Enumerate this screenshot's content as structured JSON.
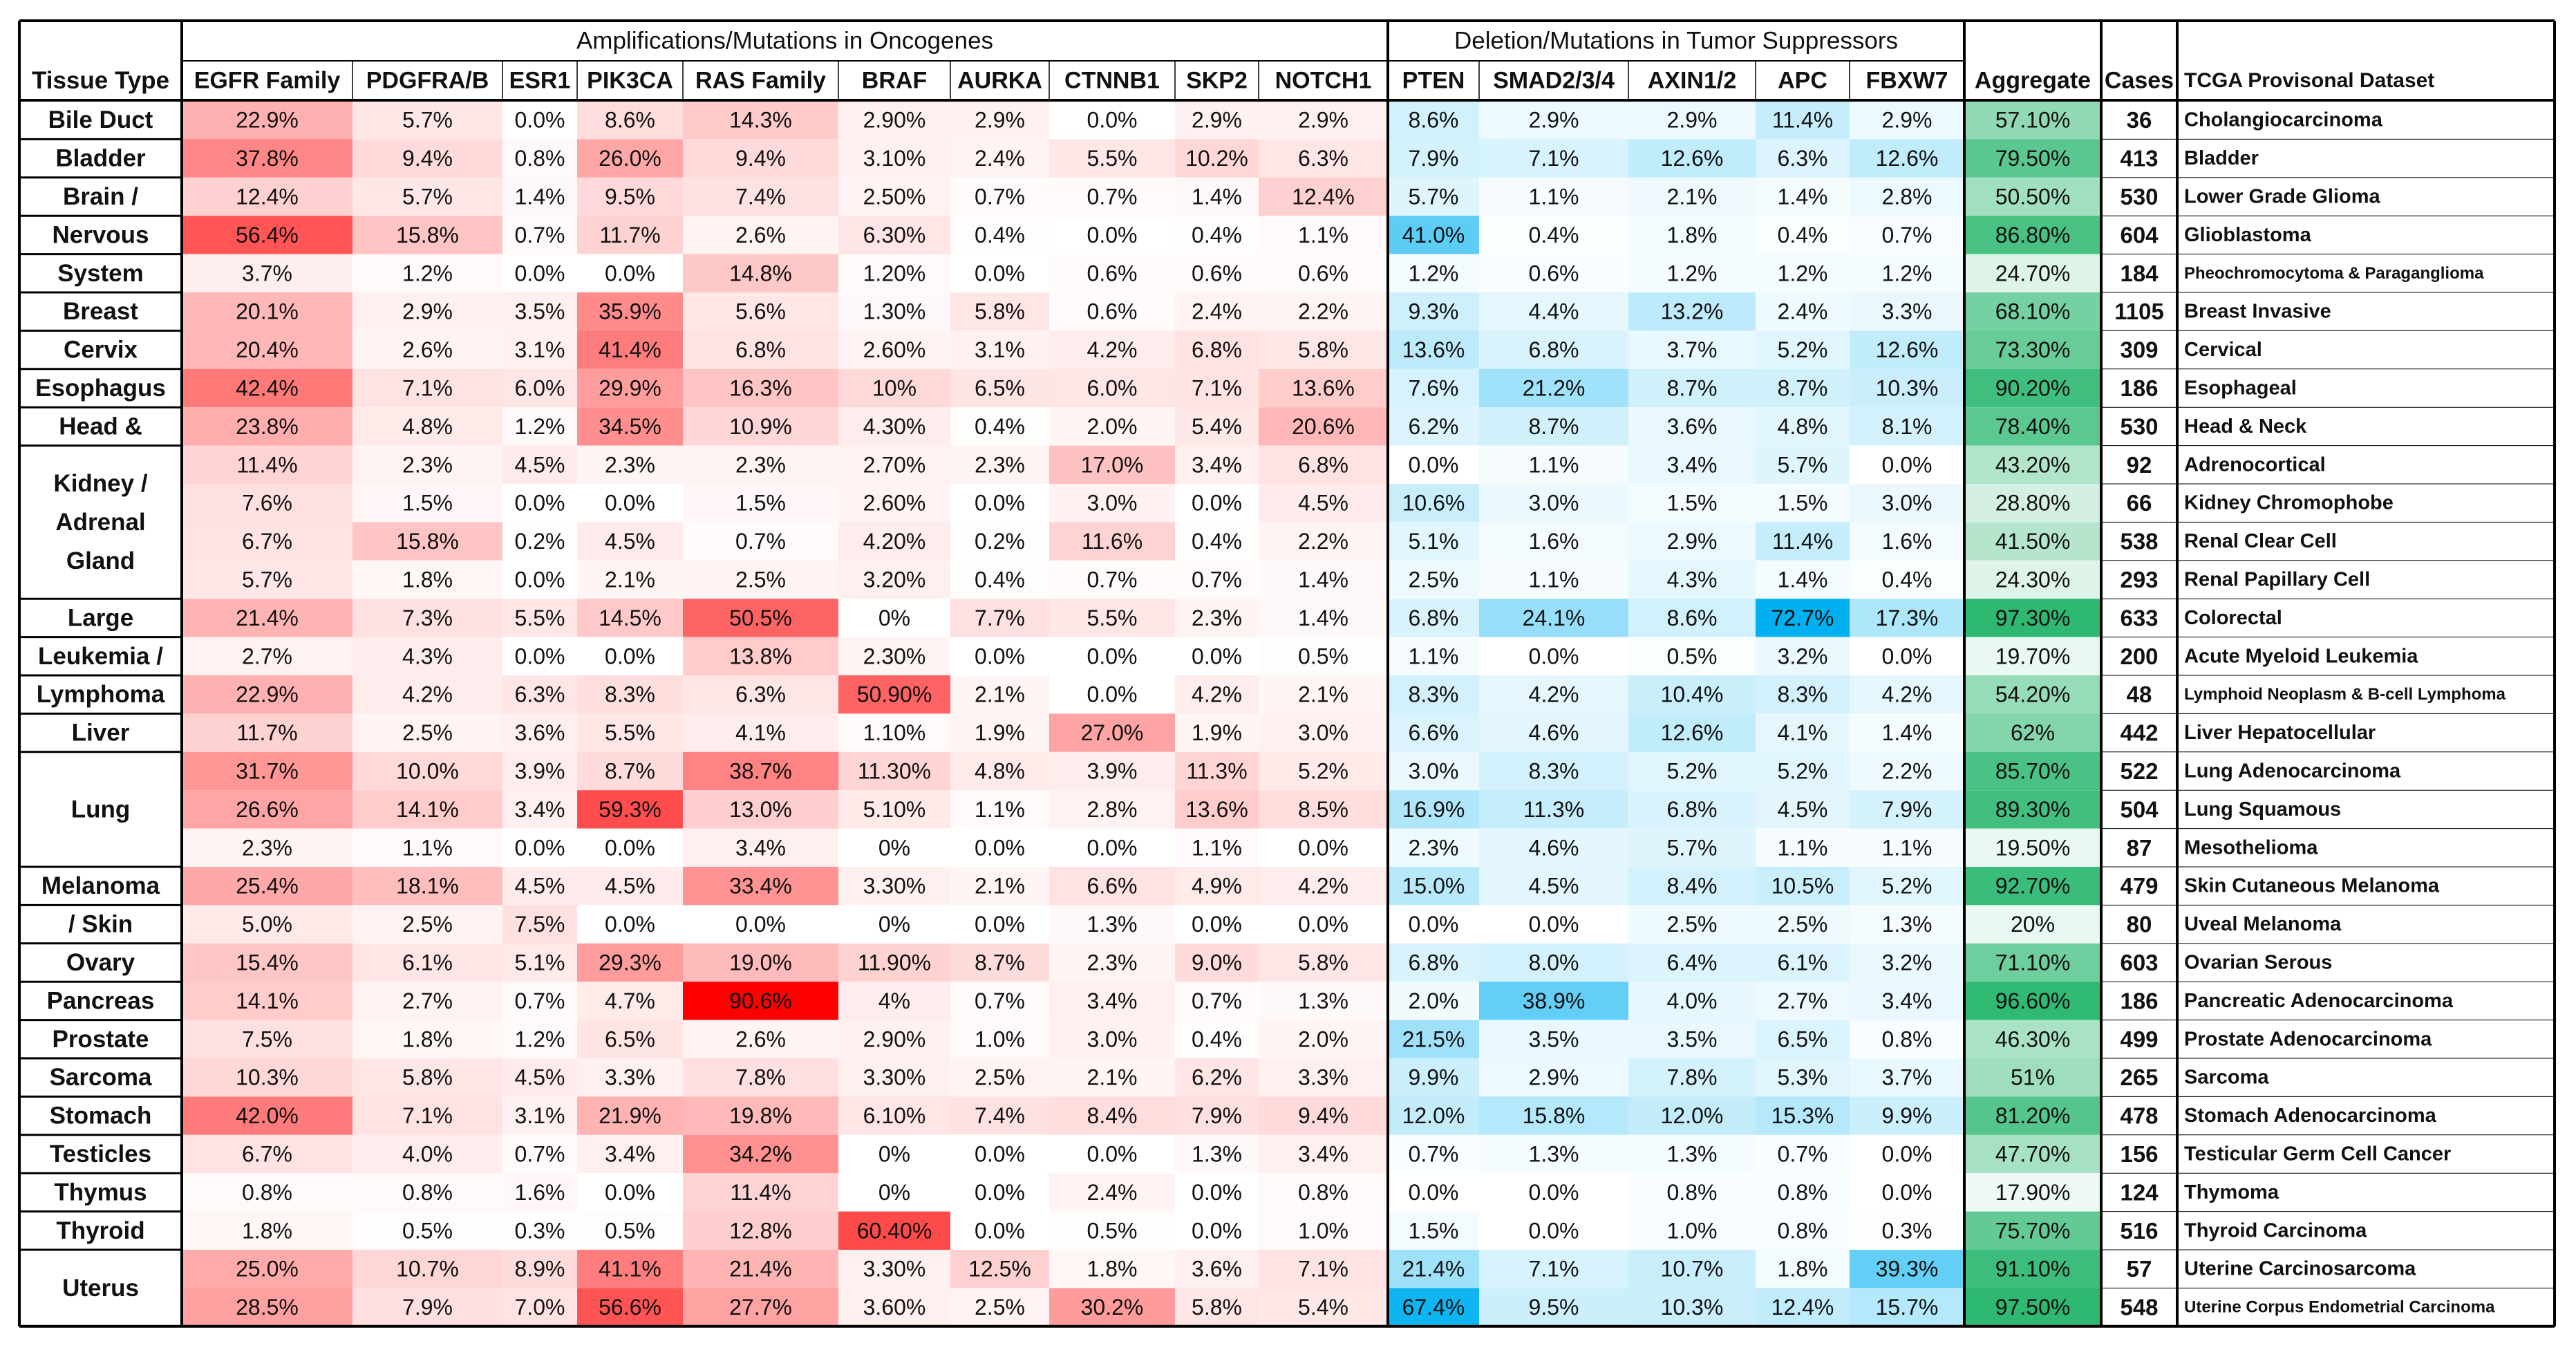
{
  "chart_data": {
    "type": "heatmap",
    "group_headers": {
      "oncogenes": "Amplifications/Mutations in Oncogenes",
      "suppressors": "Deletion/Mutations in Tumor Suppressors"
    },
    "columns": {
      "tissue": "Tissue Type",
      "oncogenes": [
        "EGFR Family",
        "PDGFRA/B",
        "ESR1",
        "PIK3CA",
        "RAS Family",
        "BRAF",
        "AURKA",
        "CTNNB1",
        "SKP2",
        "NOTCH1"
      ],
      "suppressors": [
        "PTEN",
        "SMAD2/3/4",
        "AXIN1/2",
        "APC",
        "FBXW7"
      ],
      "aggregate": "Aggregate",
      "cases": "Cases",
      "dataset": "TCGA Provisonal Dataset"
    },
    "tissue_groups": [
      {
        "label": "Bile Duct",
        "rows": 1
      },
      {
        "label": "Bladder",
        "rows": 1
      },
      {
        "label": "Brain /",
        "rows": 1
      },
      {
        "label": "Nervous",
        "rows": 1
      },
      {
        "label": "System",
        "rows": 1
      },
      {
        "label": "Breast",
        "rows": 1
      },
      {
        "label": "Cervix",
        "rows": 1
      },
      {
        "label": "Esophagus",
        "rows": 1
      },
      {
        "label": "Head &",
        "rows": 1
      },
      {
        "label": "Kidney / Adrenal Gland",
        "rows": 4
      },
      {
        "label": "Large",
        "rows": 1
      },
      {
        "label": "Leukemia /",
        "rows": 1
      },
      {
        "label": "Lymphoma",
        "rows": 1
      },
      {
        "label": "Liver",
        "rows": 1
      },
      {
        "label": "Lung",
        "rows": 3
      },
      {
        "label": "Melanoma",
        "rows": 1
      },
      {
        "label": "/ Skin",
        "rows": 1
      },
      {
        "label": "Ovary",
        "rows": 1
      },
      {
        "label": "Pancreas",
        "rows": 1
      },
      {
        "label": "Prostate",
        "rows": 1
      },
      {
        "label": "Sarcoma",
        "rows": 1
      },
      {
        "label": "Stomach",
        "rows": 1
      },
      {
        "label": "Testicles",
        "rows": 1
      },
      {
        "label": "Thymus",
        "rows": 1
      },
      {
        "label": "Thyroid",
        "rows": 1
      },
      {
        "label": "Uterus",
        "rows": 2
      }
    ],
    "rows": [
      {
        "onc": [
          "22.9%",
          "5.7%",
          "0.0%",
          "8.6%",
          "14.3%",
          "2.90%",
          "2.9%",
          "0.0%",
          "2.9%",
          "2.9%"
        ],
        "sup": [
          "8.6%",
          "2.9%",
          "2.9%",
          "11.4%",
          "2.9%"
        ],
        "agg": "57.10%",
        "cases": "36",
        "dataset": "Cholangiocarcinoma"
      },
      {
        "onc": [
          "37.8%",
          "9.4%",
          "0.8%",
          "26.0%",
          "9.4%",
          "3.10%",
          "2.4%",
          "5.5%",
          "10.2%",
          "6.3%"
        ],
        "sup": [
          "7.9%",
          "7.1%",
          "12.6%",
          "6.3%",
          "12.6%"
        ],
        "agg": "79.50%",
        "cases": "413",
        "dataset": "Bladder"
      },
      {
        "onc": [
          "12.4%",
          "5.7%",
          "1.4%",
          "9.5%",
          "7.4%",
          "2.50%",
          "0.7%",
          "0.7%",
          "1.4%",
          "12.4%"
        ],
        "sup": [
          "5.7%",
          "1.1%",
          "2.1%",
          "1.4%",
          "2.8%"
        ],
        "agg": "50.50%",
        "cases": "530",
        "dataset": "Lower Grade Glioma"
      },
      {
        "onc": [
          "56.4%",
          "15.8%",
          "0.7%",
          "11.7%",
          "2.6%",
          "6.30%",
          "0.4%",
          "0.0%",
          "0.4%",
          "1.1%"
        ],
        "sup": [
          "41.0%",
          "0.4%",
          "1.8%",
          "0.4%",
          "0.7%"
        ],
        "agg": "86.80%",
        "cases": "604",
        "dataset": "Glioblastoma"
      },
      {
        "onc": [
          "3.7%",
          "1.2%",
          "0.0%",
          "0.0%",
          "14.8%",
          "1.20%",
          "0.0%",
          "0.6%",
          "0.6%",
          "0.6%"
        ],
        "sup": [
          "1.2%",
          "0.6%",
          "1.2%",
          "1.2%",
          "1.2%"
        ],
        "agg": "24.70%",
        "cases": "184",
        "dataset": "Pheochromocytoma & Paraganglioma"
      },
      {
        "onc": [
          "20.1%",
          "2.9%",
          "3.5%",
          "35.9%",
          "5.6%",
          "1.30%",
          "5.8%",
          "0.6%",
          "2.4%",
          "2.2%"
        ],
        "sup": [
          "9.3%",
          "4.4%",
          "13.2%",
          "2.4%",
          "3.3%"
        ],
        "agg": "68.10%",
        "cases": "1105",
        "dataset": "Breast Invasive"
      },
      {
        "onc": [
          "20.4%",
          "2.6%",
          "3.1%",
          "41.4%",
          "6.8%",
          "2.60%",
          "3.1%",
          "4.2%",
          "6.8%",
          "5.8%"
        ],
        "sup": [
          "13.6%",
          "6.8%",
          "3.7%",
          "5.2%",
          "12.6%"
        ],
        "agg": "73.30%",
        "cases": "309",
        "dataset": "Cervical"
      },
      {
        "onc": [
          "42.4%",
          "7.1%",
          "6.0%",
          "29.9%",
          "16.3%",
          "10%",
          "6.5%",
          "6.0%",
          "7.1%",
          "13.6%"
        ],
        "sup": [
          "7.6%",
          "21.2%",
          "8.7%",
          "8.7%",
          "10.3%"
        ],
        "agg": "90.20%",
        "cases": "186",
        "dataset": "Esophageal"
      },
      {
        "onc": [
          "23.8%",
          "4.8%",
          "1.2%",
          "34.5%",
          "10.9%",
          "4.30%",
          "0.4%",
          "2.0%",
          "5.4%",
          "20.6%"
        ],
        "sup": [
          "6.2%",
          "8.7%",
          "3.6%",
          "4.8%",
          "8.1%"
        ],
        "agg": "78.40%",
        "cases": "530",
        "dataset": "Head & Neck"
      },
      {
        "onc": [
          "11.4%",
          "2.3%",
          "4.5%",
          "2.3%",
          "2.3%",
          "2.70%",
          "2.3%",
          "17.0%",
          "3.4%",
          "6.8%"
        ],
        "sup": [
          "0.0%",
          "1.1%",
          "3.4%",
          "5.7%",
          "0.0%"
        ],
        "agg": "43.20%",
        "cases": "92",
        "dataset": "Adrenocortical"
      },
      {
        "onc": [
          "7.6%",
          "1.5%",
          "0.0%",
          "0.0%",
          "1.5%",
          "2.60%",
          "0.0%",
          "3.0%",
          "0.0%",
          "4.5%"
        ],
        "sup": [
          "10.6%",
          "3.0%",
          "1.5%",
          "1.5%",
          "3.0%"
        ],
        "agg": "28.80%",
        "cases": "66",
        "dataset": "Kidney Chromophobe"
      },
      {
        "onc": [
          "6.7%",
          "15.8%",
          "0.2%",
          "4.5%",
          "0.7%",
          "4.20%",
          "0.2%",
          "11.6%",
          "0.4%",
          "2.2%"
        ],
        "sup": [
          "5.1%",
          "1.6%",
          "2.9%",
          "11.4%",
          "1.6%"
        ],
        "agg": "41.50%",
        "cases": "538",
        "dataset": "Renal Clear Cell"
      },
      {
        "onc": [
          "5.7%",
          "1.8%",
          "0.0%",
          "2.1%",
          "2.5%",
          "3.20%",
          "0.4%",
          "0.7%",
          "0.7%",
          "1.4%"
        ],
        "sup": [
          "2.5%",
          "1.1%",
          "4.3%",
          "1.4%",
          "0.4%"
        ],
        "agg": "24.30%",
        "cases": "293",
        "dataset": "Renal Papillary Cell"
      },
      {
        "onc": [
          "21.4%",
          "7.3%",
          "5.5%",
          "14.5%",
          "50.5%",
          "0%",
          "7.7%",
          "5.5%",
          "2.3%",
          "1.4%"
        ],
        "sup": [
          "6.8%",
          "24.1%",
          "8.6%",
          "72.7%",
          "17.3%"
        ],
        "agg": "97.30%",
        "cases": "633",
        "dataset": "Colorectal"
      },
      {
        "onc": [
          "2.7%",
          "4.3%",
          "0.0%",
          "0.0%",
          "13.8%",
          "2.30%",
          "0.0%",
          "0.0%",
          "0.0%",
          "0.5%"
        ],
        "sup": [
          "1.1%",
          "0.0%",
          "0.5%",
          "3.2%",
          "0.0%"
        ],
        "agg": "19.70%",
        "cases": "200",
        "dataset": "Acute Myeloid Leukemia"
      },
      {
        "onc": [
          "22.9%",
          "4.2%",
          "6.3%",
          "8.3%",
          "6.3%",
          "50.90%",
          "2.1%",
          "0.0%",
          "4.2%",
          "2.1%"
        ],
        "sup": [
          "8.3%",
          "4.2%",
          "10.4%",
          "8.3%",
          "4.2%"
        ],
        "agg": "54.20%",
        "cases": "48",
        "dataset": "Lymphoid Neoplasm & B-cell Lymphoma"
      },
      {
        "onc": [
          "11.7%",
          "2.5%",
          "3.6%",
          "5.5%",
          "4.1%",
          "1.10%",
          "1.9%",
          "27.0%",
          "1.9%",
          "3.0%"
        ],
        "sup": [
          "6.6%",
          "4.6%",
          "12.6%",
          "4.1%",
          "1.4%"
        ],
        "agg": "62%",
        "cases": "442",
        "dataset": "Liver Hepatocellular"
      },
      {
        "onc": [
          "31.7%",
          "10.0%",
          "3.9%",
          "8.7%",
          "38.7%",
          "11.30%",
          "4.8%",
          "3.9%",
          "11.3%",
          "5.2%"
        ],
        "sup": [
          "3.0%",
          "8.3%",
          "5.2%",
          "5.2%",
          "2.2%"
        ],
        "agg": "85.70%",
        "cases": "522",
        "dataset": "Lung Adenocarcinoma"
      },
      {
        "onc": [
          "26.6%",
          "14.1%",
          "3.4%",
          "59.3%",
          "13.0%",
          "5.10%",
          "1.1%",
          "2.8%",
          "13.6%",
          "8.5%"
        ],
        "sup": [
          "16.9%",
          "11.3%",
          "6.8%",
          "4.5%",
          "7.9%"
        ],
        "agg": "89.30%",
        "cases": "504",
        "dataset": "Lung Squamous"
      },
      {
        "onc": [
          "2.3%",
          "1.1%",
          "0.0%",
          "0.0%",
          "3.4%",
          "0%",
          "0.0%",
          "0.0%",
          "1.1%",
          "0.0%"
        ],
        "sup": [
          "2.3%",
          "4.6%",
          "5.7%",
          "1.1%",
          "1.1%"
        ],
        "agg": "19.50%",
        "cases": "87",
        "dataset": "Mesothelioma"
      },
      {
        "onc": [
          "25.4%",
          "18.1%",
          "4.5%",
          "4.5%",
          "33.4%",
          "3.30%",
          "2.1%",
          "6.6%",
          "4.9%",
          "4.2%"
        ],
        "sup": [
          "15.0%",
          "4.5%",
          "8.4%",
          "10.5%",
          "5.2%"
        ],
        "agg": "92.70%",
        "cases": "479",
        "dataset": "Skin Cutaneous Melanoma"
      },
      {
        "onc": [
          "5.0%",
          "2.5%",
          "7.5%",
          "0.0%",
          "0.0%",
          "0%",
          "0.0%",
          "1.3%",
          "0.0%",
          "0.0%"
        ],
        "sup": [
          "0.0%",
          "0.0%",
          "2.5%",
          "2.5%",
          "1.3%"
        ],
        "agg": "20%",
        "cases": "80",
        "dataset": "Uveal Melanoma"
      },
      {
        "onc": [
          "15.4%",
          "6.1%",
          "5.1%",
          "29.3%",
          "19.0%",
          "11.90%",
          "8.7%",
          "2.3%",
          "9.0%",
          "5.8%"
        ],
        "sup": [
          "6.8%",
          "8.0%",
          "6.4%",
          "6.1%",
          "3.2%"
        ],
        "agg": "71.10%",
        "cases": "603",
        "dataset": "Ovarian Serous"
      },
      {
        "onc": [
          "14.1%",
          "2.7%",
          "0.7%",
          "4.7%",
          "90.6%",
          "4%",
          "0.7%",
          "3.4%",
          "0.7%",
          "1.3%"
        ],
        "sup": [
          "2.0%",
          "38.9%",
          "4.0%",
          "2.7%",
          "3.4%"
        ],
        "agg": "96.60%",
        "cases": "186",
        "dataset": "Pancreatic Adenocarcinoma"
      },
      {
        "onc": [
          "7.5%",
          "1.8%",
          "1.2%",
          "6.5%",
          "2.6%",
          "2.90%",
          "1.0%",
          "3.0%",
          "0.4%",
          "2.0%"
        ],
        "sup": [
          "21.5%",
          "3.5%",
          "3.5%",
          "6.5%",
          "0.8%"
        ],
        "agg": "46.30%",
        "cases": "499",
        "dataset": "Prostate Adenocarcinoma"
      },
      {
        "onc": [
          "10.3%",
          "5.8%",
          "4.5%",
          "3.3%",
          "7.8%",
          "3.30%",
          "2.5%",
          "2.1%",
          "6.2%",
          "3.3%"
        ],
        "sup": [
          "9.9%",
          "2.9%",
          "7.8%",
          "5.3%",
          "3.7%"
        ],
        "agg": "51%",
        "cases": "265",
        "dataset": "Sarcoma"
      },
      {
        "onc": [
          "42.0%",
          "7.1%",
          "3.1%",
          "21.9%",
          "19.8%",
          "6.10%",
          "7.4%",
          "8.4%",
          "7.9%",
          "9.4%"
        ],
        "sup": [
          "12.0%",
          "15.8%",
          "12.0%",
          "15.3%",
          "9.9%"
        ],
        "agg": "81.20%",
        "cases": "478",
        "dataset": "Stomach Adenocarcinoma"
      },
      {
        "onc": [
          "6.7%",
          "4.0%",
          "0.7%",
          "3.4%",
          "34.2%",
          "0%",
          "0.0%",
          "0.0%",
          "1.3%",
          "3.4%"
        ],
        "sup": [
          "0.7%",
          "1.3%",
          "1.3%",
          "0.7%",
          "0.0%"
        ],
        "agg": "47.70%",
        "cases": "156",
        "dataset": "Testicular Germ Cell Cancer"
      },
      {
        "onc": [
          "0.8%",
          "0.8%",
          "1.6%",
          "0.0%",
          "11.4%",
          "0%",
          "0.0%",
          "2.4%",
          "0.0%",
          "0.8%"
        ],
        "sup": [
          "0.0%",
          "0.0%",
          "0.8%",
          "0.8%",
          "0.0%"
        ],
        "agg": "17.90%",
        "cases": "124",
        "dataset": "Thymoma"
      },
      {
        "onc": [
          "1.8%",
          "0.5%",
          "0.3%",
          "0.5%",
          "12.8%",
          "60.40%",
          "0.0%",
          "0.5%",
          "0.0%",
          "1.0%"
        ],
        "sup": [
          "1.5%",
          "0.0%",
          "1.0%",
          "0.8%",
          "0.3%"
        ],
        "agg": "75.70%",
        "cases": "516",
        "dataset": "Thyroid Carcinoma"
      },
      {
        "onc": [
          "25.0%",
          "10.7%",
          "8.9%",
          "41.1%",
          "21.4%",
          "3.30%",
          "12.5%",
          "1.8%",
          "3.6%",
          "7.1%"
        ],
        "sup": [
          "21.4%",
          "7.1%",
          "10.7%",
          "1.8%",
          "39.3%"
        ],
        "agg": "91.10%",
        "cases": "57",
        "dataset": "Uterine Carcinosarcoma"
      },
      {
        "onc": [
          "28.5%",
          "7.9%",
          "7.0%",
          "56.6%",
          "27.7%",
          "3.60%",
          "2.5%",
          "30.2%",
          "5.8%",
          "5.4%"
        ],
        "sup": [
          "67.4%",
          "9.5%",
          "10.3%",
          "12.4%",
          "15.7%"
        ],
        "agg": "97.50%",
        "cases": "548",
        "dataset": "Uterine Corpus Endometrial Carcinoma"
      }
    ],
    "colors": {
      "oncogene_max": "#ff0000",
      "suppressor_max": "#00b0f0",
      "aggregate_max": "#2eb872",
      "border": "#000000"
    },
    "scales": {
      "oncogene_range": [
        0,
        90.6
      ],
      "suppressor_range": [
        0,
        72.7
      ],
      "aggregate_range": [
        17.9,
        97.5
      ]
    }
  }
}
